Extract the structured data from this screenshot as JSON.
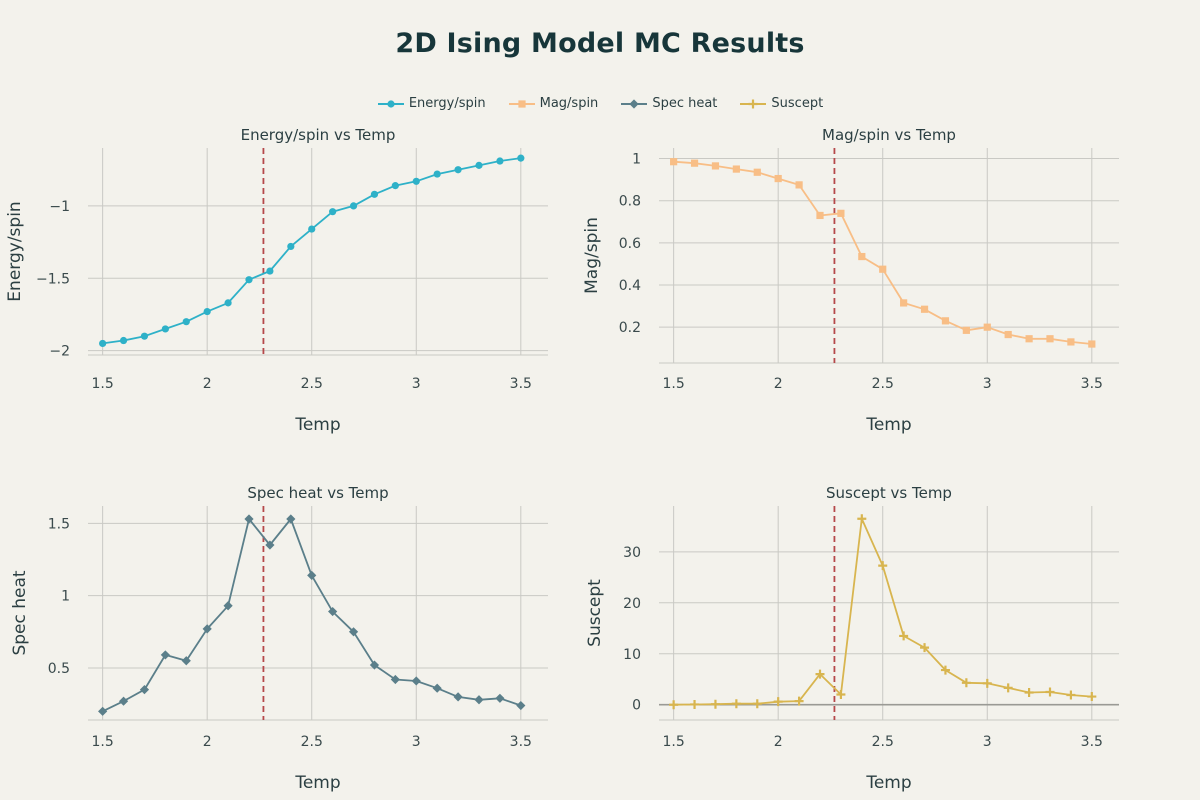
{
  "title": "2D Ising Model MC Results",
  "critical_temp": 2.269,
  "colors": {
    "energy": "#2eb1c8",
    "mag": "#f8be86",
    "spec": "#5b7f8a",
    "suscept": "#d8b54f",
    "critical_line": "#b5484a",
    "grid": "#c9c9c4",
    "zero_line": "#9a9a95"
  },
  "legend": [
    {
      "label": "Energy/spin",
      "color": "#2eb1c8",
      "marker": "circle"
    },
    {
      "label": "Mag/spin",
      "color": "#f8be86",
      "marker": "square"
    },
    {
      "label": "Spec heat",
      "color": "#5b7f8a",
      "marker": "diamond"
    },
    {
      "label": "Suscept",
      "color": "#d8b54f",
      "marker": "cross"
    }
  ],
  "chart_data": [
    {
      "type": "line",
      "title": "Energy/spin vs Temp",
      "xlabel": "Temp",
      "ylabel": "Energy/spin",
      "marker": "circle",
      "color": "#2eb1c8",
      "xlim": [
        1.43,
        3.63
      ],
      "ylim": [
        -2.03,
        -0.6
      ],
      "xticks": [
        1.5,
        2,
        2.5,
        3,
        3.5
      ],
      "xtick_labels": [
        "1.5",
        "2",
        "2.5",
        "3",
        "3.5"
      ],
      "yticks": [
        -2,
        -1.5,
        -1
      ],
      "ytick_labels": [
        "−2",
        "−1.5",
        "−1"
      ],
      "x": [
        1.5,
        1.6,
        1.7,
        1.8,
        1.9,
        2.0,
        2.1,
        2.2,
        2.3,
        2.4,
        2.5,
        2.6,
        2.7,
        2.8,
        2.9,
        3.0,
        3.1,
        3.2,
        3.3,
        3.4,
        3.5
      ],
      "y": [
        -1.95,
        -1.93,
        -1.9,
        -1.85,
        -1.8,
        -1.73,
        -1.67,
        -1.51,
        -1.45,
        -1.28,
        -1.16,
        -1.04,
        -1.0,
        -0.92,
        -0.86,
        -0.83,
        -0.78,
        -0.75,
        -0.72,
        -0.69,
        -0.67
      ]
    },
    {
      "type": "line",
      "title": "Mag/spin vs Temp",
      "xlabel": "Temp",
      "ylabel": "Mag/spin",
      "marker": "square",
      "color": "#f8be86",
      "xlim": [
        1.43,
        3.63
      ],
      "ylim": [
        0.03,
        1.05
      ],
      "xticks": [
        1.5,
        2,
        2.5,
        3,
        3.5
      ],
      "xtick_labels": [
        "1.5",
        "2",
        "2.5",
        "3",
        "3.5"
      ],
      "yticks": [
        0.2,
        0.4,
        0.6,
        0.8,
        1
      ],
      "ytick_labels": [
        "0.2",
        "0.4",
        "0.6",
        "0.8",
        "1"
      ],
      "x": [
        1.5,
        1.6,
        1.7,
        1.8,
        1.9,
        2.0,
        2.1,
        2.2,
        2.3,
        2.4,
        2.5,
        2.6,
        2.7,
        2.8,
        2.9,
        3.0,
        3.1,
        3.2,
        3.3,
        3.4,
        3.5
      ],
      "y": [
        0.985,
        0.978,
        0.965,
        0.95,
        0.935,
        0.905,
        0.875,
        0.73,
        0.74,
        0.535,
        0.475,
        0.315,
        0.285,
        0.23,
        0.185,
        0.2,
        0.165,
        0.145,
        0.145,
        0.13,
        0.12
      ]
    },
    {
      "type": "line",
      "title": "Spec heat vs Temp",
      "xlabel": "Temp",
      "ylabel": "Spec heat",
      "marker": "diamond",
      "color": "#5b7f8a",
      "xlim": [
        1.43,
        3.63
      ],
      "ylim": [
        0.14,
        1.62
      ],
      "xticks": [
        1.5,
        2,
        2.5,
        3,
        3.5
      ],
      "xtick_labels": [
        "1.5",
        "2",
        "2.5",
        "3",
        "3.5"
      ],
      "yticks": [
        0.5,
        1,
        1.5
      ],
      "ytick_labels": [
        "0.5",
        "1",
        "1.5"
      ],
      "x": [
        1.5,
        1.6,
        1.7,
        1.8,
        1.9,
        2.0,
        2.1,
        2.2,
        2.3,
        2.4,
        2.5,
        2.6,
        2.7,
        2.8,
        2.9,
        3.0,
        3.1,
        3.2,
        3.3,
        3.4,
        3.5
      ],
      "y": [
        0.2,
        0.27,
        0.35,
        0.59,
        0.55,
        0.77,
        0.93,
        1.53,
        1.35,
        1.53,
        1.14,
        0.89,
        0.75,
        0.52,
        0.42,
        0.41,
        0.36,
        0.3,
        0.28,
        0.29,
        0.24
      ]
    },
    {
      "type": "line",
      "title": "Suscept vs Temp",
      "xlabel": "Temp",
      "ylabel": "Suscept",
      "marker": "cross",
      "color": "#d8b54f",
      "xlim": [
        1.43,
        3.63
      ],
      "ylim": [
        -3,
        39
      ],
      "xticks": [
        1.5,
        2,
        2.5,
        3,
        3.5
      ],
      "xtick_labels": [
        "1.5",
        "2",
        "2.5",
        "3",
        "3.5"
      ],
      "yticks": [
        0,
        10,
        20,
        30
      ],
      "ytick_labels": [
        "0",
        "10",
        "20",
        "30"
      ],
      "x": [
        1.5,
        1.6,
        1.7,
        1.8,
        1.9,
        2.0,
        2.1,
        2.2,
        2.3,
        2.4,
        2.5,
        2.6,
        2.7,
        2.8,
        2.9,
        3.0,
        3.1,
        3.2,
        3.3,
        3.4,
        3.5
      ],
      "y": [
        0.0,
        0.05,
        0.1,
        0.2,
        0.2,
        0.6,
        0.7,
        6.0,
        2.0,
        36.5,
        27.3,
        13.5,
        11.2,
        6.8,
        4.3,
        4.2,
        3.3,
        2.4,
        2.5,
        1.9,
        1.6
      ]
    }
  ]
}
